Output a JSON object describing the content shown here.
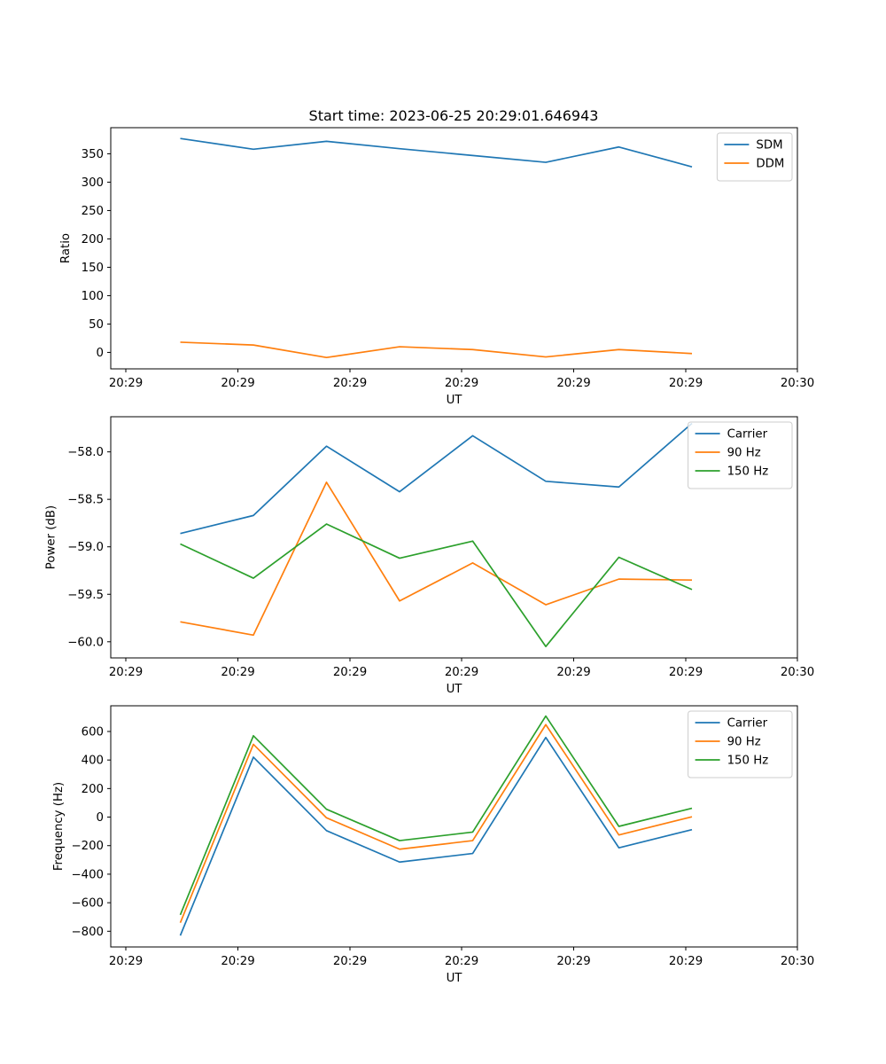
{
  "title": "Start time: 2023-06-25 20:29:01.646943",
  "chart_data": [
    {
      "type": "line",
      "x": [
        "t1",
        "t2",
        "t3",
        "t4",
        "t5",
        "t6",
        "t7",
        "t8"
      ],
      "xticklabels": [
        "20:29",
        "20:29",
        "20:29",
        "20:29",
        "20:29",
        "20:29",
        "20:29",
        "20:30"
      ],
      "xlabel": "UT",
      "ylabel": "Ratio",
      "yticks": [
        0,
        50,
        100,
        150,
        200,
        250,
        300,
        350
      ],
      "ylim": [
        -29,
        396
      ],
      "legend_position": "top-right",
      "series": [
        {
          "name": "SDM",
          "color": "#1f77b4",
          "values": [
            377,
            358,
            372,
            359,
            347,
            335,
            362,
            327
          ]
        },
        {
          "name": "DDM",
          "color": "#ff7f0e",
          "values": [
            18,
            13,
            -9,
            10,
            5,
            -8,
            5,
            -2
          ]
        }
      ]
    },
    {
      "type": "line",
      "x": [
        "t1",
        "t2",
        "t3",
        "t4",
        "t5",
        "t6",
        "t7",
        "t8"
      ],
      "xticklabels": [
        "20:29",
        "20:29",
        "20:29",
        "20:29",
        "20:29",
        "20:29",
        "20:29",
        "20:30"
      ],
      "xlabel": "UT",
      "ylabel": "Power (dB)",
      "yticks": [
        -60.0,
        -59.5,
        -59.0,
        -58.5,
        -58.0
      ],
      "yticklabels": [
        "−60.0",
        "−59.5",
        "−59.0",
        "−58.5",
        "−58.0"
      ],
      "ylim": [
        -60.17,
        -57.63
      ],
      "legend_position": "top-right",
      "series": [
        {
          "name": "Carrier",
          "color": "#1f77b4",
          "values": [
            -58.86,
            -58.67,
            -57.94,
            -58.42,
            -57.83,
            -58.31,
            -58.37,
            -57.7
          ]
        },
        {
          "name": "90 Hz",
          "color": "#ff7f0e",
          "values": [
            -59.79,
            -59.93,
            -58.32,
            -59.57,
            -59.17,
            -59.61,
            -59.34,
            -59.35
          ]
        },
        {
          "name": "150 Hz",
          "color": "#2ca02c",
          "values": [
            -58.97,
            -59.33,
            -58.76,
            -59.12,
            -58.94,
            -60.05,
            -59.11,
            -59.45
          ]
        }
      ]
    },
    {
      "type": "line",
      "x": [
        "t1",
        "t2",
        "t3",
        "t4",
        "t5",
        "t6",
        "t7",
        "t8"
      ],
      "xticklabels": [
        "20:29",
        "20:29",
        "20:29",
        "20:29",
        "20:29",
        "20:29",
        "20:29",
        "20:30"
      ],
      "xlabel": "UT",
      "ylabel": "Frequency (Hz)",
      "yticks": [
        -800,
        -600,
        -400,
        -200,
        0,
        200,
        400,
        600
      ],
      "yticklabels": [
        "−800",
        "−600",
        "−400",
        "−200",
        "0",
        "200",
        "400",
        "600"
      ],
      "ylim": [
        -910,
        780
      ],
      "legend_position": "top-right",
      "series": [
        {
          "name": "Carrier",
          "color": "#1f77b4",
          "values": [
            -830,
            420,
            -95,
            -315,
            -255,
            558,
            -215,
            -88
          ]
        },
        {
          "name": "90 Hz",
          "color": "#ff7f0e",
          "values": [
            -740,
            510,
            -5,
            -225,
            -165,
            648,
            -125,
            2
          ]
        },
        {
          "name": "150 Hz",
          "color": "#2ca02c",
          "values": [
            -685,
            570,
            55,
            -165,
            -105,
            708,
            -65,
            62
          ]
        }
      ]
    }
  ]
}
